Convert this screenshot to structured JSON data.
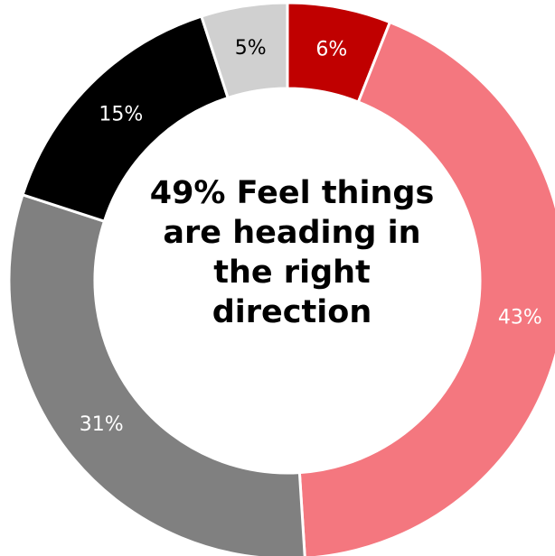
{
  "chart_data": {
    "type": "pie",
    "variant": "donut",
    "center_text": "49% Feel things\nare heading in\nthe right\ndirection",
    "slices": [
      {
        "value": 6,
        "label": "6%",
        "color": "#c00000",
        "label_color": "#ffffff"
      },
      {
        "value": 43,
        "label": "43%",
        "color": "#f4777f",
        "label_color": "#ffffff"
      },
      {
        "value": 31,
        "label": "31%",
        "color": "#808080",
        "label_color": "#ffffff"
      },
      {
        "value": 15,
        "label": "15%",
        "color": "#000000",
        "label_color": "#ffffff"
      },
      {
        "value": 5,
        "label": "5%",
        "color": "#d0d0d0",
        "label_color": "#000000"
      }
    ],
    "legend": "none"
  }
}
